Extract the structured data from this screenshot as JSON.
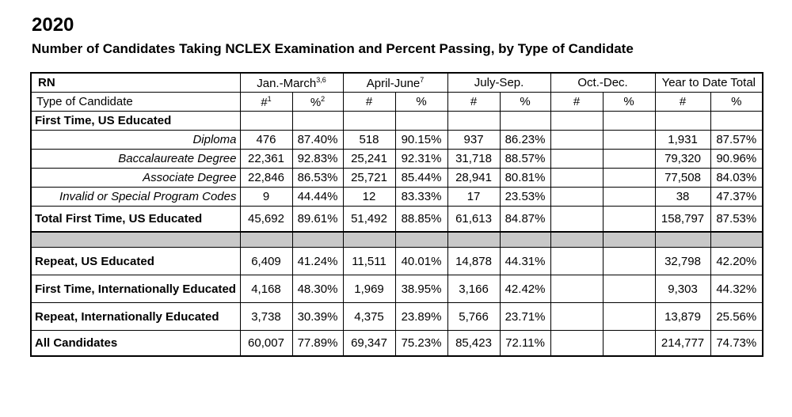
{
  "year": "2020",
  "subtitle": "Number of Candidates Taking NCLEX Examination and Percent Passing, by Type of Candidate",
  "header": {
    "rn": "RN",
    "q1": "Jan.-March",
    "q1_sup": "3,6",
    "q2": "April-June",
    "q2_sup": "7",
    "q3": "July-Sep.",
    "q4": "Oct.-Dec.",
    "ytd": "Year to Date Total"
  },
  "subheader": {
    "type": "Type of Candidate",
    "num": "#",
    "num_sup": "1",
    "pct": "%",
    "pct_sup": "2",
    "num_plain": "#",
    "pct_plain": "%"
  },
  "section_first_time_us": "First Time, US Educated",
  "rows_first_time": [
    {
      "label": "Diploma",
      "q1n": "476",
      "q1p": "87.40%",
      "q2n": "518",
      "q2p": "90.15%",
      "q3n": "937",
      "q3p": "86.23%",
      "ytdn": "1,931",
      "ytdp": "87.57%"
    },
    {
      "label": "Baccalaureate Degree",
      "q1n": "22,361",
      "q1p": "92.83%",
      "q2n": "25,241",
      "q2p": "92.31%",
      "q3n": "31,718",
      "q3p": "88.57%",
      "ytdn": "79,320",
      "ytdp": "90.96%"
    },
    {
      "label": "Associate Degree",
      "q1n": "22,846",
      "q1p": "86.53%",
      "q2n": "25,721",
      "q2p": "85.44%",
      "q3n": "28,941",
      "q3p": "80.81%",
      "ytdn": "77,508",
      "ytdp": "84.03%"
    },
    {
      "label": "Invalid or Special Program Codes",
      "q1n": "9",
      "q1p": "44.44%",
      "q2n": "12",
      "q2p": "83.33%",
      "q3n": "17",
      "q3p": "23.53%",
      "ytdn": "38",
      "ytdp": "47.37%"
    }
  ],
  "total_first_time": {
    "label": "Total First Time, US Educated",
    "q1n": "45,692",
    "q1p": "89.61%",
    "q2n": "51,492",
    "q2p": "88.85%",
    "q3n": "61,613",
    "q3p": "84.87%",
    "ytdn": "158,797",
    "ytdp": "87.53%"
  },
  "rows_other": [
    {
      "label": "Repeat, US Educated",
      "q1n": "6,409",
      "q1p": "41.24%",
      "q2n": "11,511",
      "q2p": "40.01%",
      "q3n": "14,878",
      "q3p": "44.31%",
      "ytdn": "32,798",
      "ytdp": "42.20%"
    },
    {
      "label": "First Time, Internationally Educated",
      "q1n": "4,168",
      "q1p": "48.30%",
      "q2n": "1,969",
      "q2p": "38.95%",
      "q3n": "3,166",
      "q3p": "42.42%",
      "ytdn": "9,303",
      "ytdp": "44.32%"
    },
    {
      "label": "Repeat, Internationally Educated",
      "q1n": "3,738",
      "q1p": "30.39%",
      "q2n": "4,375",
      "q2p": "23.89%",
      "q3n": "5,766",
      "q3p": "23.71%",
      "ytdn": "13,879",
      "ytdp": "25.56%"
    }
  ],
  "all_candidates": {
    "label": "All Candidates",
    "q1n": "60,007",
    "q1p": "77.89%",
    "q2n": "69,347",
    "q2p": "75.23%",
    "q3n": "85,423",
    "q3p": "72.11%",
    "ytdn": "214,777",
    "ytdp": "74.73%"
  }
}
